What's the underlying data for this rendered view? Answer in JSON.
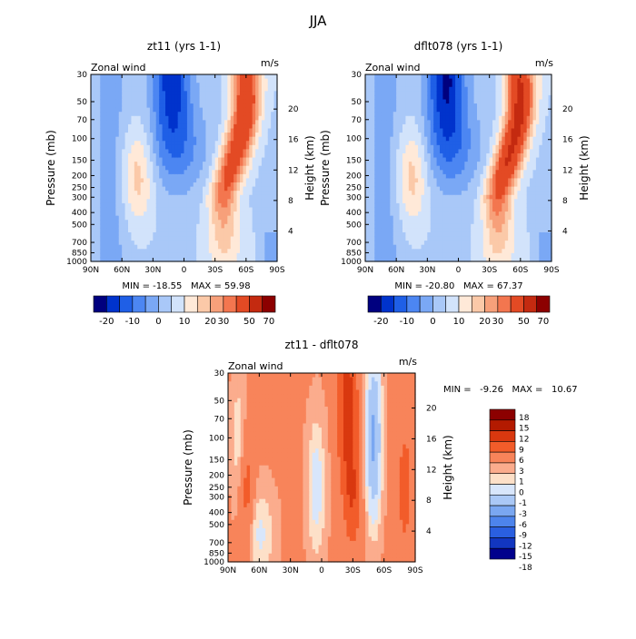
{
  "figure_title": "JJA",
  "chart_data": [
    {
      "type": "heatmap",
      "title": "zt11 (yrs 1-1)",
      "subtitle_left": "Zonal wind",
      "units": "m/s",
      "ylabel": "Pressure (mb)",
      "ylabel_right": "Height (km)",
      "x_ticks": [
        "90N",
        "60N",
        "30N",
        "0",
        "30S",
        "60S",
        "90S"
      ],
      "y_ticks": [
        "30",
        "50",
        "70",
        "100",
        "150",
        "200",
        "250",
        "300",
        "400",
        "500",
        "700",
        "850",
        "1000"
      ],
      "y_ticks_right": [
        "20",
        "16",
        "12",
        "8",
        "4"
      ],
      "stats": "MIN = -18.55   MAX = 59.98",
      "colorbar_labels": [
        "-20",
        "-10",
        "0",
        "10",
        "20",
        "30",
        "50",
        "70"
      ],
      "fields": [
        {
          "name": "jet_north",
          "lat": 45,
          "p": 200,
          "value": 19
        },
        {
          "name": "jet_south",
          "lat": -35,
          "p": 200,
          "value": 35
        },
        {
          "name": "upper_southern_max",
          "lat": -55,
          "p": 35,
          "value": 59.98
        },
        {
          "name": "easterly_min",
          "lat": 15,
          "p": 35,
          "value": -18.55
        }
      ]
    },
    {
      "type": "heatmap",
      "title": "dflt078 (yrs 1-1)",
      "subtitle_left": "Zonal wind",
      "units": "m/s",
      "ylabel": "Pressure (mb)",
      "ylabel_right": "Height (km)",
      "x_ticks": [
        "90N",
        "60N",
        "30N",
        "0",
        "30S",
        "60S",
        "90S"
      ],
      "y_ticks": [
        "30",
        "50",
        "70",
        "100",
        "150",
        "200",
        "250",
        "300",
        "400",
        "500",
        "700",
        "850",
        "1000"
      ],
      "y_ticks_right": [
        "20",
        "16",
        "12",
        "8",
        "4"
      ],
      "stats": "MIN = -20.80   MAX = 67.37",
      "colorbar_labels": [
        "-20",
        "-10",
        "0",
        "10",
        "20",
        "30",
        "50",
        "70"
      ],
      "fields": [
        {
          "name": "jet_north",
          "lat": 45,
          "p": 200,
          "value": 20
        },
        {
          "name": "jet_south",
          "lat": -35,
          "p": 200,
          "value": 37
        },
        {
          "name": "upper_southern_max",
          "lat": -55,
          "p": 35,
          "value": 67.37
        },
        {
          "name": "easterly_min",
          "lat": 15,
          "p": 35,
          "value": -20.8
        }
      ]
    },
    {
      "type": "heatmap",
      "title": "zt11 - dflt078",
      "subtitle_left": "Zonal wind",
      "units": "m/s",
      "ylabel": "Pressure (mb)",
      "ylabel_right": "Height (km)",
      "x_ticks": [
        "90N",
        "60N",
        "30N",
        "0",
        "30S",
        "60S",
        "90S"
      ],
      "y_ticks": [
        "30",
        "50",
        "70",
        "100",
        "150",
        "200",
        "250",
        "300",
        "400",
        "500",
        "700",
        "850",
        "1000"
      ],
      "y_ticks_right": [
        "20",
        "16",
        "12",
        "8",
        "4"
      ],
      "stats": "MIN =   -9.26   MAX =   10.67",
      "colorbar_labels": [
        "18",
        "15",
        "12",
        "9",
        "6",
        "3",
        "1",
        "0",
        "-1",
        "-3",
        "-6",
        "-9",
        "-12",
        "-15",
        "-18"
      ],
      "fields": [
        {
          "name": "positive_band",
          "lat": -25,
          "p": 150,
          "value": 10.67
        },
        {
          "name": "negative_band",
          "lat": -50,
          "p": 150,
          "value": -9.26
        }
      ]
    }
  ],
  "colors": {
    "full_scale": [
      "#00007f",
      "#0033cc",
      "#1f5fe6",
      "#4c86f2",
      "#7aa8f5",
      "#a9c8f8",
      "#d2e3fb",
      "#ffe9d8",
      "#fbc9a8",
      "#f7a07a",
      "#f3764f",
      "#e34a24",
      "#c42a10",
      "#8c0000"
    ],
    "diff_scale": [
      "#8c0000",
      "#b31a00",
      "#d9380f",
      "#f25c2a",
      "#f8845a",
      "#fbac8d",
      "#fde0c8",
      "#d8e6fb",
      "#aac8f6",
      "#7aa7f1",
      "#4d84ec",
      "#2a5fe0",
      "#1236c0",
      "#00008c"
    ]
  }
}
